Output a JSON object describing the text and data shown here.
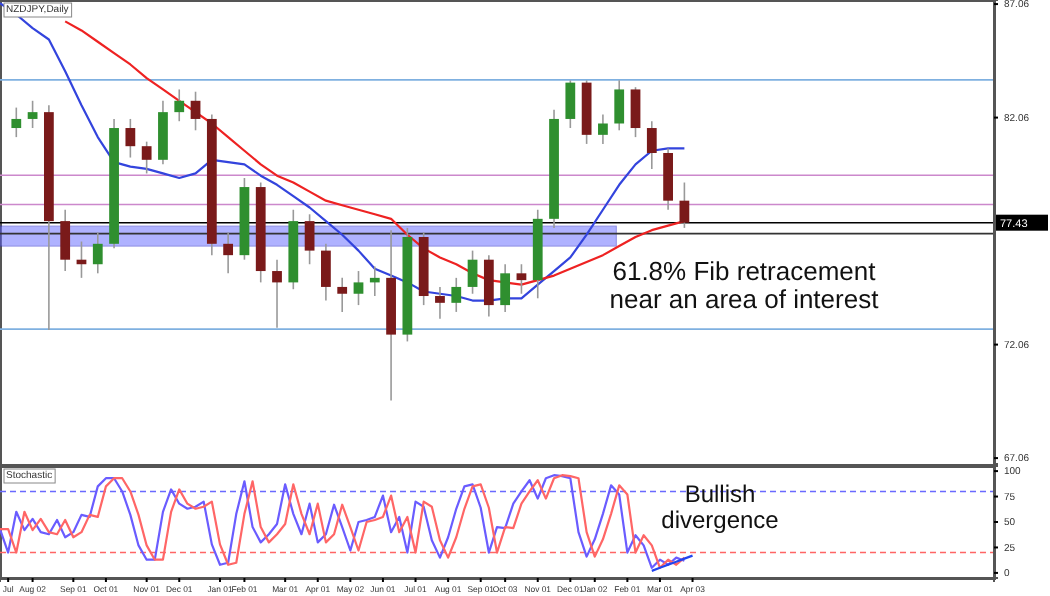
{
  "chart_data": [
    {
      "type": "candlestick",
      "title": "NZDJPY,Daily",
      "categories": [
        null,
        null,
        null,
        null,
        null,
        null,
        null,
        null,
        null,
        null,
        null,
        null,
        null,
        null,
        null,
        null,
        null,
        null,
        null,
        null,
        null,
        null,
        null,
        null,
        null,
        null,
        null,
        null,
        null,
        null,
        null,
        null,
        null,
        null,
        null,
        null,
        null,
        null,
        null,
        null,
        null,
        null,
        null,
        null,
        null,
        null,
        null,
        null,
        null,
        null,
        null,
        null,
        null,
        null,
        null,
        null,
        null,
        null,
        null,
        null,
        null
      ],
      "ohlc": [
        null,
        [
          81.6,
          82.5,
          81.2,
          82.0
        ],
        [
          82.0,
          82.8,
          81.6,
          82.3
        ],
        [
          82.3,
          82.6,
          72.7,
          77.5
        ],
        [
          77.5,
          78.0,
          75.3,
          75.8
        ],
        [
          75.8,
          76.6,
          75.0,
          75.6
        ],
        [
          75.6,
          77.0,
          75.2,
          76.5
        ],
        [
          76.5,
          82.0,
          76.3,
          81.6
        ],
        [
          81.6,
          82.0,
          80.3,
          80.8
        ],
        [
          80.8,
          81.0,
          79.6,
          80.2
        ],
        [
          80.2,
          82.8,
          80.0,
          82.3
        ],
        [
          82.3,
          83.3,
          81.9,
          82.8
        ],
        [
          82.8,
          83.2,
          81.5,
          82.0
        ],
        [
          82.0,
          82.2,
          76.0,
          76.5
        ],
        [
          76.5,
          77.0,
          75.2,
          76.0
        ],
        [
          76.0,
          79.4,
          75.8,
          79.0
        ],
        [
          79.0,
          79.2,
          74.8,
          75.3
        ],
        [
          75.3,
          75.8,
          72.8,
          74.8
        ],
        [
          74.8,
          78.0,
          74.5,
          77.5
        ],
        [
          77.5,
          77.8,
          75.6,
          76.2
        ],
        [
          76.2,
          76.5,
          74.0,
          74.6
        ],
        [
          74.6,
          75.0,
          73.5,
          74.3
        ],
        [
          74.3,
          75.3,
          73.8,
          74.8
        ],
        [
          74.8,
          75.5,
          74.2,
          75.0
        ],
        [
          75.0,
          77.1,
          69.6,
          72.5
        ],
        [
          72.5,
          77.2,
          72.2,
          76.8
        ],
        [
          76.8,
          77.0,
          73.8,
          74.2
        ],
        [
          74.2,
          74.6,
          73.2,
          73.9
        ],
        [
          73.9,
          75.0,
          73.5,
          74.6
        ],
        [
          74.6,
          76.2,
          74.3,
          75.8
        ],
        [
          75.8,
          76.0,
          73.3,
          73.8
        ],
        [
          73.8,
          75.6,
          73.5,
          75.2
        ],
        [
          75.2,
          75.6,
          74.3,
          74.9
        ],
        [
          74.9,
          78.0,
          74.1,
          77.6
        ],
        [
          77.6,
          82.4,
          77.2,
          82.0
        ],
        [
          82.0,
          83.7,
          81.6,
          83.6
        ],
        [
          83.6,
          83.7,
          80.9,
          81.3
        ],
        [
          81.3,
          82.2,
          80.9,
          81.8
        ],
        [
          81.8,
          83.7,
          81.5,
          83.3
        ],
        [
          83.3,
          83.4,
          81.2,
          81.6
        ],
        [
          81.6,
          81.9,
          79.8,
          80.5
        ],
        [
          80.5,
          80.7,
          78.0,
          78.4
        ],
        [
          78.4,
          79.2,
          77.2,
          77.43
        ],
        null,
        null,
        null,
        null,
        null,
        null,
        null,
        null,
        null,
        null,
        null,
        null,
        null,
        null,
        null,
        null,
        null,
        null
      ],
      "series": [
        {
          "type": "line",
          "color": "#3344dd",
          "values": [
            87.1,
            86.6,
            86.0,
            85.5,
            84.1,
            82.6,
            81.2,
            80.1,
            79.9,
            79.8,
            79.6,
            79.4,
            79.6,
            80.2,
            80.1,
            80.0,
            79.5,
            79.1,
            78.6,
            78.1,
            77.5,
            76.9,
            76.2,
            75.4,
            75.1,
            74.8,
            74.4,
            74.3,
            74.2,
            74.0,
            74.0,
            74.1,
            74.1,
            74.7,
            75.3,
            75.9,
            76.9,
            78.0,
            79.1,
            80.0,
            80.6,
            80.7,
            80.7,
            null,
            null,
            null,
            null,
            null,
            null,
            null,
            null,
            null,
            null,
            null,
            null,
            null,
            null,
            null,
            null,
            null,
            null
          ]
        },
        {
          "type": "line",
          "color": "#ee2222",
          "values": [
            null,
            null,
            null,
            null,
            86.3,
            85.9,
            85.4,
            84.9,
            84.4,
            83.8,
            83.3,
            82.8,
            82.3,
            81.8,
            81.2,
            80.6,
            80.0,
            79.5,
            79.2,
            78.8,
            78.4,
            78.2,
            78.0,
            77.8,
            77.6,
            76.9,
            76.3,
            75.9,
            75.6,
            75.2,
            74.9,
            74.8,
            74.7,
            74.9,
            75.1,
            75.4,
            75.7,
            76.0,
            76.4,
            76.8,
            77.1,
            77.3,
            77.5,
            null,
            null,
            null,
            null,
            null,
            null,
            null,
            null,
            null,
            null,
            null,
            null,
            null,
            null,
            null,
            null,
            null,
            null
          ]
        }
      ],
      "bands": [
        {
          "axis": "y",
          "from": 76.4,
          "to": 77.28,
          "color": "#6f74ff"
        }
      ],
      "ref_lines": [
        {
          "axis": "y",
          "value": 83.72,
          "color": "#7fb0e0"
        },
        {
          "axis": "y",
          "value": 79.52,
          "color": "#cc88cc"
        },
        {
          "axis": "y",
          "value": 78.23,
          "color": "#cc88cc"
        },
        {
          "axis": "y",
          "value": 76.95,
          "color": "#333333"
        },
        {
          "axis": "y",
          "value": 72.74,
          "color": "#7fb0e0"
        },
        {
          "axis": "y",
          "value": 77.43,
          "color": "#000000",
          "label": "77.43"
        }
      ],
      "annotations": [
        "61.8% Fib retracement",
        "near an area of interest"
      ],
      "ylim": [
        66.8,
        87.24
      ],
      "yticks": [
        87.06,
        82.06,
        72.06,
        67.06
      ],
      "tick_labels": "y"
    },
    {
      "type": "line",
      "title": "Stochastic",
      "categories": [
        null,
        "Jul",
        null,
        null,
        "Aug 02",
        null,
        null,
        null,
        null,
        "Sep 01",
        null,
        null,
        null,
        "Oct 01",
        null,
        null,
        null,
        null,
        "Nov 01",
        null,
        null,
        null,
        "Dec 01",
        null,
        null,
        null,
        null,
        "Jan 01",
        null,
        null,
        "Feb 01",
        null,
        null,
        null,
        null,
        "Mar 01",
        null,
        null,
        null,
        "Apr 01",
        null,
        null,
        null,
        "May 02",
        null,
        null,
        null,
        "Jun 01",
        null,
        null,
        null,
        "Jul 01",
        null,
        null,
        null,
        "Aug 01",
        null,
        null,
        null,
        "Sep 01",
        null,
        null,
        "Oct 03",
        null,
        null,
        null,
        "Nov 01",
        null,
        null,
        null,
        "Dec 01",
        null,
        null,
        "Jan 02",
        null,
        null,
        null,
        "Feb 01",
        null,
        null,
        null,
        "Mar 01",
        null,
        null,
        null,
        "Apr 03",
        null,
        null,
        null,
        null,
        null,
        null,
        null,
        null,
        null,
        null,
        null,
        null,
        null,
        null,
        null,
        null,
        null,
        null,
        null,
        null,
        null,
        null,
        null,
        null,
        null,
        null,
        null,
        null,
        null,
        null,
        null,
        null,
        null,
        null,
        null,
        null
      ],
      "series": [
        {
          "color": "#6a5cff",
          "values": [
            43,
            20,
            60,
            42,
            53,
            40,
            38,
            52,
            35,
            40,
            57,
            55,
            85,
            93,
            93,
            80,
            57,
            27,
            13,
            13,
            60,
            82,
            68,
            63,
            65,
            70,
            28,
            8,
            10,
            58,
            90,
            45,
            30,
            38,
            48,
            87,
            58,
            38,
            68,
            30,
            38,
            67,
            45,
            22,
            50,
            52,
            55,
            76,
            40,
            55,
            20,
            70,
            65,
            32,
            15,
            35,
            63,
            85,
            87,
            64,
            20,
            45,
            44,
            68,
            80,
            91,
            73,
            93,
            96,
            95,
            93,
            40,
            16,
            33,
            58,
            86,
            77,
            20,
            37,
            27,
            5,
            13,
            8,
            15,
            12,
            null,
            null,
            null,
            null,
            null,
            null,
            null,
            null,
            null,
            null,
            null,
            null,
            null,
            null,
            null,
            null,
            null,
            null,
            null,
            null,
            null,
            null,
            null,
            null,
            null,
            null,
            null,
            null,
            null,
            null,
            null,
            null,
            null,
            null,
            null,
            null,
            null
          ]
        },
        {
          "color": "#ff6666",
          "values": [
            43,
            43,
            20,
            60,
            42,
            53,
            40,
            38,
            52,
            35,
            40,
            57,
            55,
            85,
            93,
            93,
            80,
            57,
            27,
            13,
            13,
            60,
            82,
            68,
            63,
            65,
            70,
            28,
            8,
            10,
            58,
            90,
            45,
            30,
            38,
            48,
            87,
            58,
            38,
            68,
            30,
            38,
            67,
            45,
            22,
            50,
            52,
            55,
            76,
            40,
            55,
            20,
            70,
            65,
            32,
            15,
            35,
            63,
            85,
            87,
            64,
            20,
            45,
            44,
            68,
            80,
            91,
            73,
            93,
            96,
            95,
            93,
            40,
            16,
            33,
            58,
            86,
            77,
            20,
            37,
            27,
            5,
            13,
            8,
            15,
            null,
            null,
            null,
            null,
            null,
            null,
            null,
            null,
            null,
            null,
            null,
            null,
            null,
            null,
            null,
            null,
            null,
            null,
            null,
            null,
            null,
            null,
            null,
            null,
            null,
            null,
            null,
            null,
            null,
            null,
            null,
            null,
            null,
            null,
            null,
            null,
            null
          ]
        },
        {
          "color": "#2244ee",
          "values": [
            null,
            null,
            null,
            null,
            null,
            null,
            null,
            null,
            null,
            null,
            null,
            null,
            null,
            null,
            null,
            null,
            null,
            null,
            null,
            null,
            null,
            null,
            null,
            null,
            null,
            null,
            null,
            null,
            null,
            null,
            null,
            null,
            null,
            null,
            null,
            null,
            null,
            null,
            null,
            null,
            null,
            null,
            null,
            null,
            null,
            null,
            null,
            null,
            null,
            null,
            null,
            null,
            null,
            null,
            null,
            null,
            null,
            null,
            null,
            null,
            null,
            null,
            null,
            null,
            null,
            null,
            null,
            null,
            null,
            null,
            null,
            null,
            null,
            null,
            null,
            null,
            null,
            null,
            null,
            null,
            2,
            5,
            8,
            11,
            14,
            17,
            null,
            null,
            null,
            null,
            null,
            null,
            null,
            null,
            null,
            null,
            null,
            null,
            null,
            null,
            null,
            null,
            null,
            null,
            null,
            null,
            null,
            null,
            null,
            null,
            null,
            null,
            null,
            null,
            null,
            null,
            null,
            null,
            null,
            null,
            null,
            null
          ]
        }
      ],
      "ref_lines": [
        {
          "axis": "y",
          "value": 80,
          "color": "#6a6aff",
          "line_style": "dashed"
        },
        {
          "axis": "y",
          "value": 20,
          "color": "#ff6666",
          "line_style": "dashed"
        }
      ],
      "annotations": [
        "Bullish",
        "divergence"
      ],
      "ylim": [
        -5,
        105
      ],
      "yticks": [
        0,
        25,
        50,
        75,
        100
      ],
      "line_style": "solid",
      "marker": "none"
    }
  ]
}
